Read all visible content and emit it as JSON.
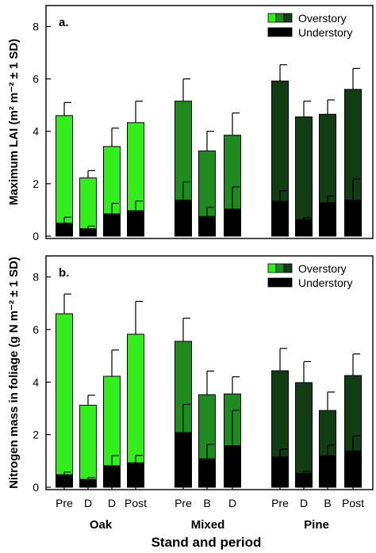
{
  "colors": {
    "oak": "#33ee1d",
    "mixed": "#1e8a1f",
    "pine": "#123d12",
    "understory": "#000000"
  },
  "group_labels": [
    "Oak",
    "Mixed",
    "Pine"
  ],
  "xlabel": "Stand and period",
  "chart_data": [
    {
      "type": "bar",
      "panel_label": "a.",
      "ylabel": "Maximum LAI (m² m⁻² ± 1 SD)",
      "ylim": [
        0,
        8.8
      ],
      "yticks": [
        0,
        2,
        4,
        6,
        8
      ],
      "categories": [
        "Pre",
        "D",
        "D",
        "Post",
        "Pre",
        "B",
        "D",
        "Pre",
        "D",
        "B",
        "Post"
      ],
      "groups": [
        "Oak",
        "Oak",
        "Oak",
        "Oak",
        "Mixed",
        "Mixed",
        "Mixed",
        "Pine",
        "Pine",
        "Pine",
        "Pine"
      ],
      "series": [
        {
          "name": "Overstory",
          "values": [
            4.6,
            2.22,
            3.42,
            4.33,
            5.15,
            3.25,
            3.85,
            5.92,
            4.55,
            4.65,
            5.6
          ],
          "sd": [
            0.5,
            0.28,
            0.7,
            0.82,
            0.85,
            0.75,
            0.85,
            0.62,
            0.6,
            0.55,
            0.8
          ]
        },
        {
          "name": "Understory",
          "values": [
            0.5,
            0.28,
            0.85,
            0.97,
            1.37,
            0.75,
            1.03,
            1.33,
            0.63,
            1.28,
            1.37
          ],
          "sd": [
            0.22,
            0.1,
            0.4,
            0.37,
            0.7,
            0.35,
            0.85,
            0.4,
            0.07,
            0.25,
            0.8
          ]
        }
      ],
      "legend": [
        "Overstory",
        "Understory"
      ],
      "legend_position": "top-right",
      "grid": false
    },
    {
      "type": "bar",
      "panel_label": "b.",
      "ylabel": "Nitrogen mass in foliage (g N m⁻² ± 1 SD)",
      "ylim": [
        0,
        8.8
      ],
      "yticks": [
        0,
        2,
        4,
        6,
        8
      ],
      "categories": [
        "Pre",
        "D",
        "D",
        "Post",
        "Pre",
        "B",
        "D",
        "Pre",
        "D",
        "B",
        "Post"
      ],
      "groups": [
        "Oak",
        "Oak",
        "Oak",
        "Oak",
        "Mixed",
        "Mixed",
        "Mixed",
        "Pine",
        "Pine",
        "Pine",
        "Pine"
      ],
      "series": [
        {
          "name": "Overstory",
          "values": [
            6.6,
            3.12,
            4.22,
            5.82,
            5.55,
            3.52,
            3.55,
            4.43,
            3.98,
            2.92,
            4.25
          ],
          "sd": [
            0.75,
            0.38,
            1.0,
            1.25,
            0.88,
            0.9,
            0.65,
            0.85,
            0.8,
            0.7,
            0.82
          ]
        },
        {
          "name": "Understory",
          "values": [
            0.48,
            0.3,
            0.82,
            0.93,
            2.08,
            1.08,
            1.58,
            1.15,
            0.53,
            1.2,
            1.38
          ],
          "sd": [
            0.1,
            0.07,
            0.38,
            0.28,
            1.07,
            0.55,
            1.35,
            0.3,
            0.07,
            0.4,
            0.58
          ]
        }
      ],
      "legend": [
        "Overstory",
        "Understory"
      ],
      "legend_position": "top-right",
      "grid": false
    }
  ]
}
